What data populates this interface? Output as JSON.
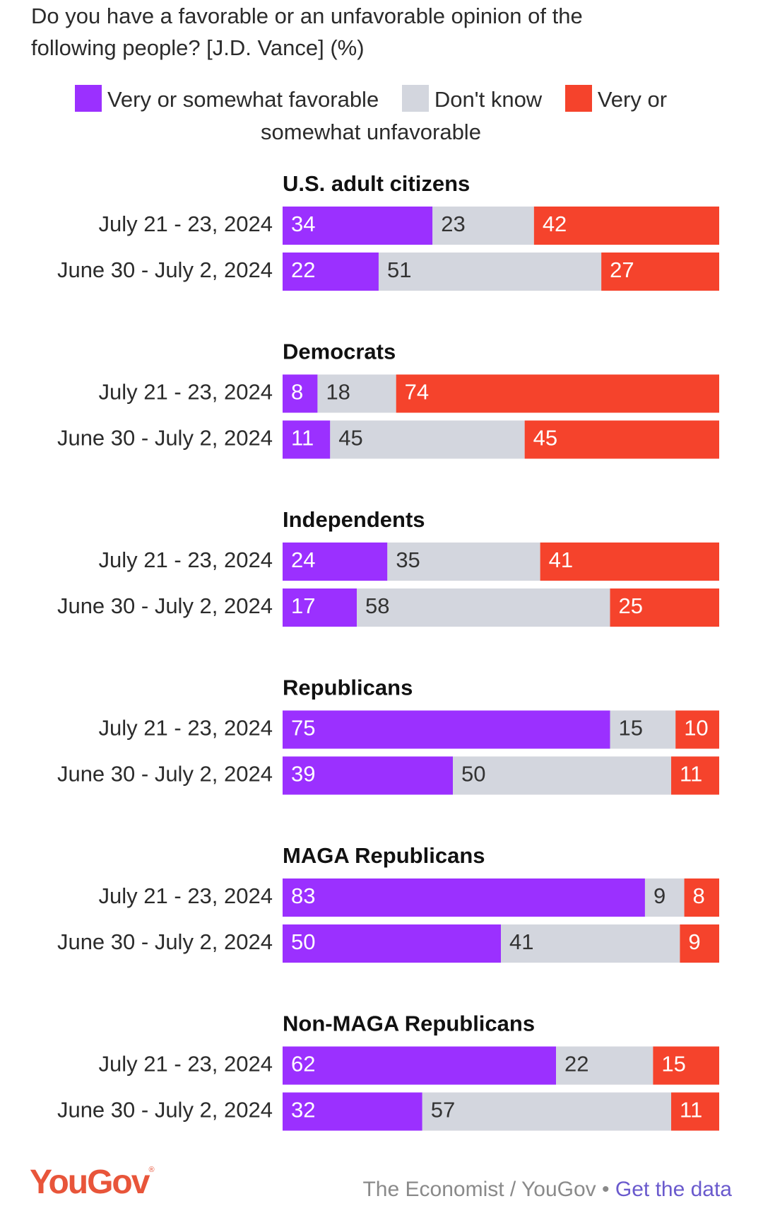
{
  "title": "Do you have a favorable or an unfavorable opinion of the following people? [J.D. Vance] (%)",
  "legend": [
    {
      "label": "Very or somewhat favorable",
      "color": "#9b30ff"
    },
    {
      "label": "Don't know",
      "color": "#d3d6de"
    },
    {
      "label": "Very or somewhat unfavorable",
      "color": "#f5432c"
    }
  ],
  "colors": {
    "favorable": "#9b30ff",
    "dont_know": "#d3d6de",
    "unfavorable": "#f5432c",
    "logo": "#e8553a",
    "link": "#6a5acd"
  },
  "chart_data": {
    "type": "bar",
    "stacked": true,
    "orientation": "horizontal",
    "series_names": [
      "Very or somewhat favorable",
      "Don't know",
      "Very or somewhat unfavorable"
    ],
    "groups": [
      {
        "name": "U.S. adult citizens",
        "rows": [
          {
            "date": "July 21 - 23, 2024",
            "values": [
              34,
              23,
              42
            ]
          },
          {
            "date": "June 30 - July 2, 2024",
            "values": [
              22,
              51,
              27
            ]
          }
        ]
      },
      {
        "name": "Democrats",
        "rows": [
          {
            "date": "July 21 - 23, 2024",
            "values": [
              8,
              18,
              74
            ]
          },
          {
            "date": "June 30 - July 2, 2024",
            "values": [
              11,
              45,
              45
            ]
          }
        ]
      },
      {
        "name": "Independents",
        "rows": [
          {
            "date": "July 21 - 23, 2024",
            "values": [
              24,
              35,
              41
            ]
          },
          {
            "date": "June 30 - July 2, 2024",
            "values": [
              17,
              58,
              25
            ]
          }
        ]
      },
      {
        "name": "Republicans",
        "rows": [
          {
            "date": "July 21 - 23, 2024",
            "values": [
              75,
              15,
              10
            ]
          },
          {
            "date": "June 30 - July 2, 2024",
            "values": [
              39,
              50,
              11
            ]
          }
        ]
      },
      {
        "name": "MAGA Republicans",
        "rows": [
          {
            "date": "July 21 - 23, 2024",
            "values": [
              83,
              9,
              8
            ]
          },
          {
            "date": "June 30 - July 2, 2024",
            "values": [
              50,
              41,
              9
            ]
          }
        ]
      },
      {
        "name": "Non-MAGA Republicans",
        "rows": [
          {
            "date": "July 21 - 23, 2024",
            "values": [
              62,
              22,
              15
            ]
          },
          {
            "date": "June 30 - July 2, 2024",
            "values": [
              32,
              57,
              11
            ]
          }
        ]
      }
    ]
  },
  "footer": {
    "logo": "YouGov",
    "logo_mark": "®",
    "source": "The Economist / YouGov",
    "separator": " • ",
    "link": "Get the data"
  }
}
